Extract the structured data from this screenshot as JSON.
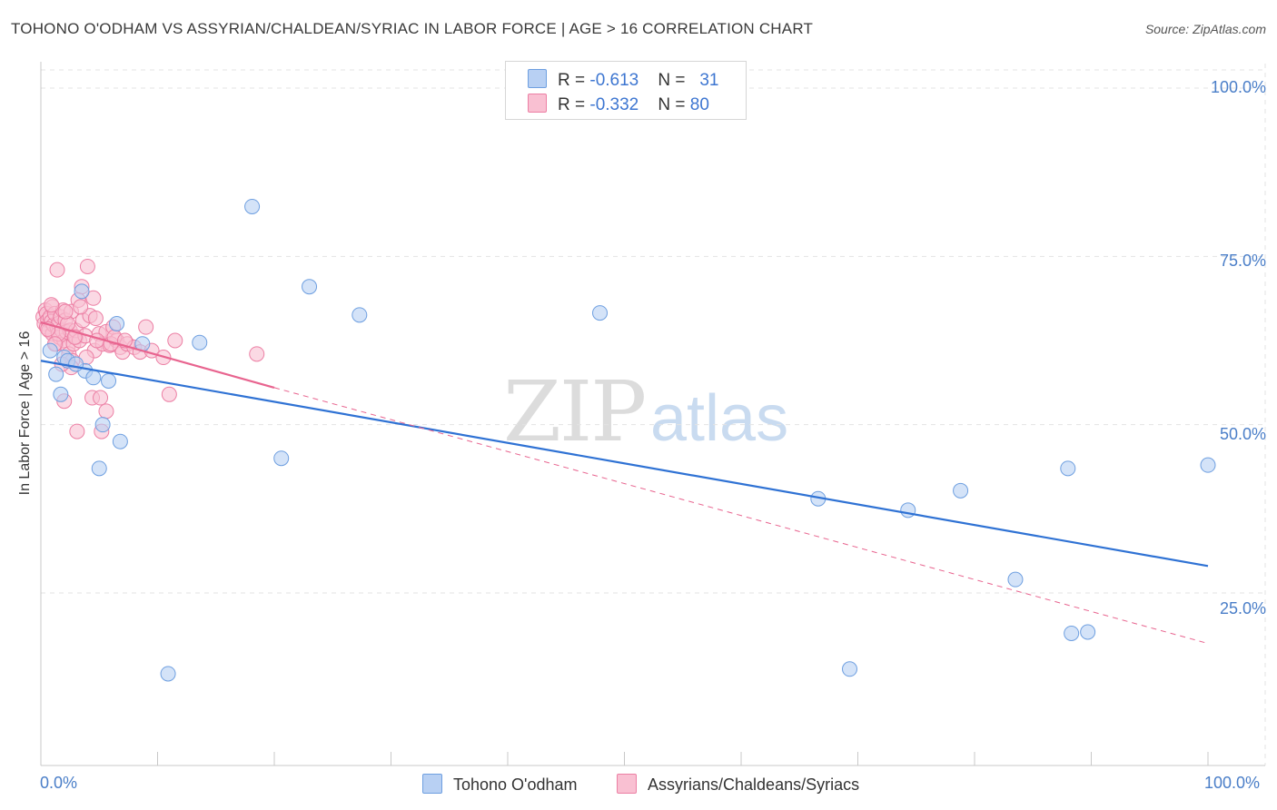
{
  "title": "TOHONO O'ODHAM VS ASSYRIAN/CHALDEAN/SYRIAC IN LABOR FORCE | AGE > 16 CORRELATION CHART",
  "source": "Source: ZipAtlas.com",
  "watermark": {
    "zip": "ZIP",
    "atlas": "atlas"
  },
  "legend": {
    "rows": [
      {
        "r_label": "R = ",
        "r_value": "-0.613",
        "n_label": "N = ",
        "n_value": "31"
      },
      {
        "r_label": "R = ",
        "r_value": "-0.332",
        "n_label": "N = ",
        "n_value": "80"
      }
    ]
  },
  "colors": {
    "blue_fill": "#b8d0f3",
    "blue_stroke": "#6e9fe0",
    "blue_line": "#2f72d4",
    "pink_fill": "#f9c0d2",
    "pink_stroke": "#ec7fa4",
    "pink_line": "#e8648f",
    "tick_text": "#4a7ec8",
    "grid": "#e3e3e3"
  },
  "chart_data": {
    "type": "scatter",
    "title": "TOHONO O'ODHAM VS ASSYRIAN/CHALDEAN/SYRIAC IN LABOR FORCE | AGE > 16 CORRELATION CHART",
    "xlabel": "",
    "ylabel": "In Labor Force | Age > 16",
    "xlim": [
      0,
      100
    ],
    "ylim": [
      0,
      105
    ],
    "x_tick_labels": [
      "0.0%",
      "100.0%"
    ],
    "y_ticks": [
      25,
      50,
      75,
      100
    ],
    "y_tick_labels": [
      "25.0%",
      "50.0%",
      "75.0%",
      "100.0%"
    ],
    "grid": true,
    "legend_position": "bottom",
    "series": [
      {
        "name": "Tohono O'odham",
        "color_key": "blue",
        "R": -0.613,
        "N": 31,
        "trend": {
          "x": [
            0,
            100
          ],
          "y": [
            59.5,
            29.0
          ],
          "dashed_to": null
        },
        "points": [
          [
            0.8,
            61.0
          ],
          [
            1.3,
            57.5
          ],
          [
            1.7,
            54.5
          ],
          [
            2.0,
            60.0
          ],
          [
            2.3,
            59.5
          ],
          [
            3.5,
            69.8
          ],
          [
            3.8,
            58.0
          ],
          [
            4.5,
            57.0
          ],
          [
            5.0,
            43.5
          ],
          [
            5.3,
            50.0
          ],
          [
            5.8,
            56.5
          ],
          [
            6.5,
            65.0
          ],
          [
            6.8,
            47.5
          ],
          [
            8.7,
            62.0
          ],
          [
            10.9,
            13.0
          ],
          [
            13.6,
            62.2
          ],
          [
            18.1,
            82.4
          ],
          [
            20.6,
            45.0
          ],
          [
            23.0,
            70.5
          ],
          [
            27.3,
            66.3
          ],
          [
            47.9,
            66.6
          ],
          [
            66.6,
            39.0
          ],
          [
            69.3,
            13.7
          ],
          [
            74.3,
            37.3
          ],
          [
            78.8,
            40.2
          ],
          [
            83.5,
            27.0
          ],
          [
            88.0,
            43.5
          ],
          [
            88.3,
            19.0
          ],
          [
            89.7,
            19.2
          ],
          [
            100.0,
            44.0
          ],
          [
            3.0,
            59.0
          ]
        ]
      },
      {
        "name": "Assyrians/Chaldeans/Syriacs",
        "color_key": "pink",
        "R": -0.332,
        "N": 80,
        "trend": {
          "x": [
            0,
            20
          ],
          "y": [
            65.2,
            55.5
          ],
          "dashed_to": {
            "x": 100,
            "y": 17.5
          }
        },
        "points": [
          [
            0.2,
            66.0
          ],
          [
            0.3,
            65.0
          ],
          [
            0.4,
            67.0
          ],
          [
            0.5,
            64.5
          ],
          [
            0.5,
            66.5
          ],
          [
            0.6,
            65.5
          ],
          [
            0.7,
            64.0
          ],
          [
            0.8,
            66.0
          ],
          [
            0.9,
            65.3
          ],
          [
            1.0,
            63.5
          ],
          [
            1.0,
            67.5
          ],
          [
            1.1,
            64.8
          ],
          [
            1.2,
            66.5
          ],
          [
            1.3,
            62.0
          ],
          [
            1.4,
            64.5
          ],
          [
            1.5,
            65.0
          ],
          [
            1.6,
            63.0
          ],
          [
            1.7,
            66.0
          ],
          [
            1.8,
            64.0
          ],
          [
            1.9,
            67.0
          ],
          [
            2.0,
            62.5
          ],
          [
            2.1,
            65.5
          ],
          [
            2.2,
            63.8
          ],
          [
            2.3,
            61.5
          ],
          [
            2.4,
            60.5
          ],
          [
            2.5,
            64.0
          ],
          [
            2.6,
            66.8
          ],
          [
            2.7,
            59.5
          ],
          [
            2.8,
            62.0
          ],
          [
            3.0,
            63.0
          ],
          [
            1.4,
            73.0
          ],
          [
            4.0,
            73.5
          ],
          [
            3.5,
            70.5
          ],
          [
            3.2,
            68.5
          ],
          [
            4.5,
            68.8
          ],
          [
            3.0,
            64.0
          ],
          [
            3.3,
            62.5
          ],
          [
            3.6,
            65.5
          ],
          [
            3.8,
            63.2
          ],
          [
            4.2,
            66.2
          ],
          [
            4.6,
            61.0
          ],
          [
            5.0,
            63.5
          ],
          [
            5.3,
            62.0
          ],
          [
            5.6,
            63.8
          ],
          [
            5.9,
            61.8
          ],
          [
            6.2,
            64.5
          ],
          [
            6.5,
            62.5
          ],
          [
            6.8,
            61.5
          ],
          [
            7.0,
            60.8
          ],
          [
            7.4,
            62.0
          ],
          [
            8.0,
            61.5
          ],
          [
            8.5,
            60.8
          ],
          [
            9.0,
            64.5
          ],
          [
            9.5,
            61.0
          ],
          [
            10.5,
            60.0
          ],
          [
            11.0,
            54.5
          ],
          [
            11.5,
            62.5
          ],
          [
            18.5,
            60.5
          ],
          [
            2.0,
            53.5
          ],
          [
            3.1,
            49.0
          ],
          [
            4.4,
            54.0
          ],
          [
            5.6,
            52.0
          ],
          [
            5.1,
            54.0
          ],
          [
            5.2,
            49.0
          ],
          [
            2.6,
            58.5
          ],
          [
            1.8,
            59.0
          ],
          [
            0.9,
            67.8
          ],
          [
            1.5,
            63.5
          ],
          [
            2.9,
            63.0
          ],
          [
            4.8,
            62.5
          ],
          [
            6.0,
            62.0
          ],
          [
            3.4,
            67.5
          ],
          [
            4.7,
            65.8
          ],
          [
            2.3,
            65.0
          ],
          [
            0.6,
            64.2
          ],
          [
            1.2,
            62.0
          ],
          [
            3.9,
            60.0
          ],
          [
            6.3,
            63.0
          ],
          [
            7.2,
            62.5
          ],
          [
            2.1,
            66.8
          ]
        ]
      }
    ]
  },
  "bottom_legend": [
    {
      "label": "Tohono O'odham"
    },
    {
      "label": "Assyrians/Chaldeans/Syriacs"
    }
  ]
}
